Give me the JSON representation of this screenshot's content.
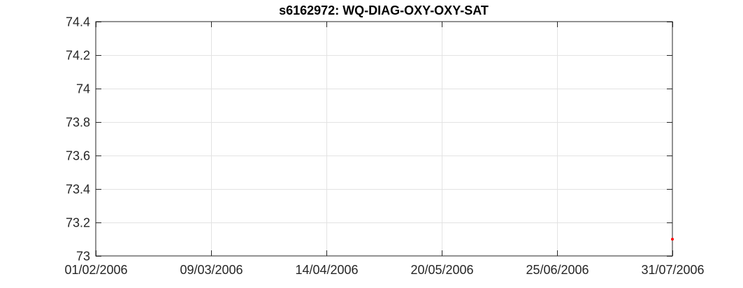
{
  "chart_data": {
    "type": "scatter",
    "title": "s6162972: WQ-DIAG-OXY-OXY-SAT",
    "xlabel": "",
    "ylabel": "",
    "xlim": [
      "2006-02-01",
      "2006-07-31"
    ],
    "ylim": [
      73,
      74.4
    ],
    "x_ticks": [
      {
        "date": "2006-02-01",
        "label": "01/02/2006"
      },
      {
        "date": "2006-03-09",
        "label": "09/03/2006"
      },
      {
        "date": "2006-04-14",
        "label": "14/04/2006"
      },
      {
        "date": "2006-05-20",
        "label": "20/05/2006"
      },
      {
        "date": "2006-06-25",
        "label": "25/06/2006"
      },
      {
        "date": "2006-07-31",
        "label": "31/07/2006"
      }
    ],
    "y_ticks": [
      "73",
      "73.2",
      "73.4",
      "73.6",
      "73.8",
      "74",
      "74.2",
      "74.4"
    ],
    "grid": true,
    "series": [
      {
        "color": "#ff0000",
        "points": [
          {
            "x": "2006-07-31",
            "y": 73.1
          }
        ]
      }
    ]
  }
}
